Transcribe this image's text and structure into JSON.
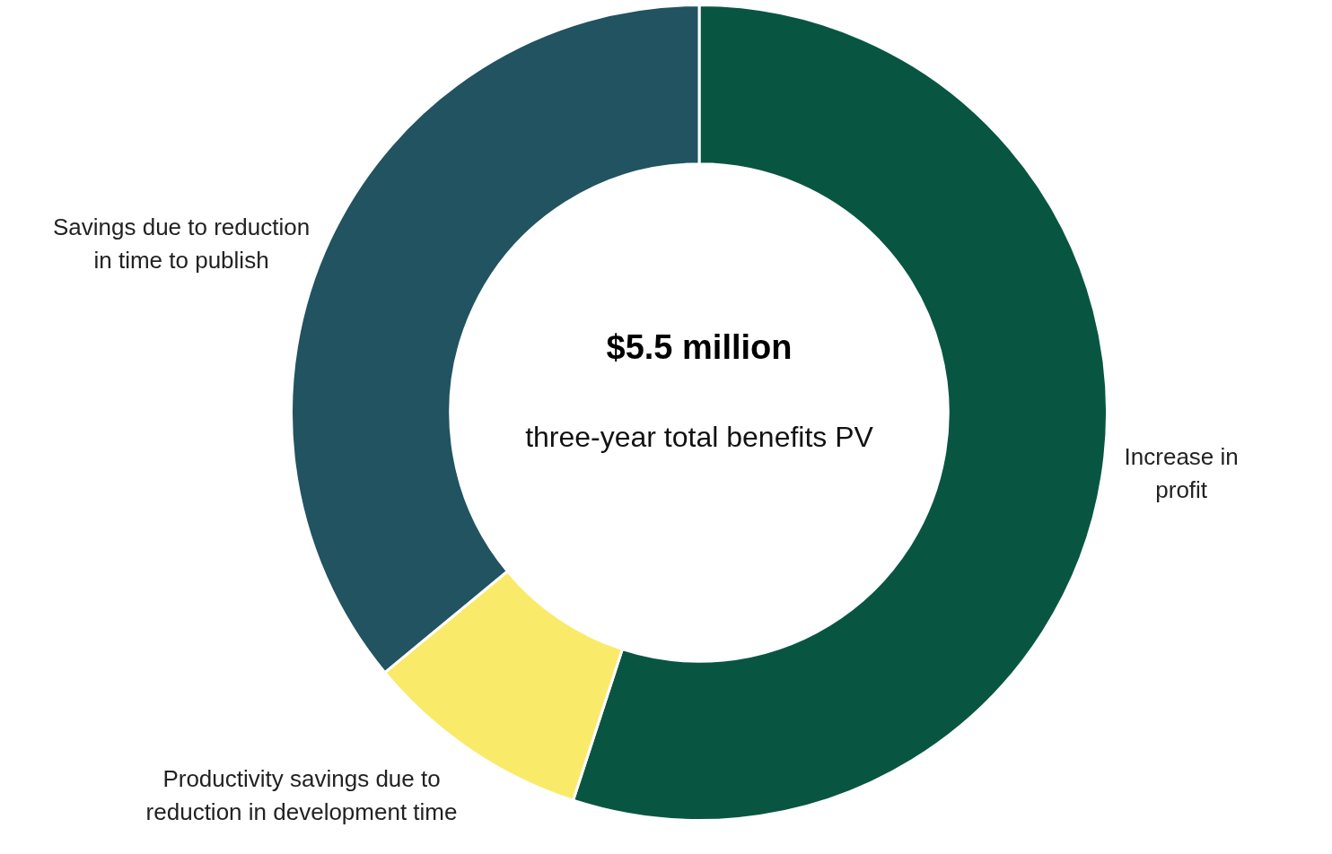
{
  "chart_data": {
    "type": "donut",
    "title": "$5.5 million",
    "subtitle": "three-year total benefits PV",
    "categories": [
      "Increase in profit",
      "Productivity savings due to reduction in development time",
      "Savings due to reduction in time to publish"
    ],
    "values": [
      55,
      9,
      36
    ],
    "colors": [
      "#085642",
      "#f9ea6a",
      "#215361"
    ],
    "legend": false
  }
}
